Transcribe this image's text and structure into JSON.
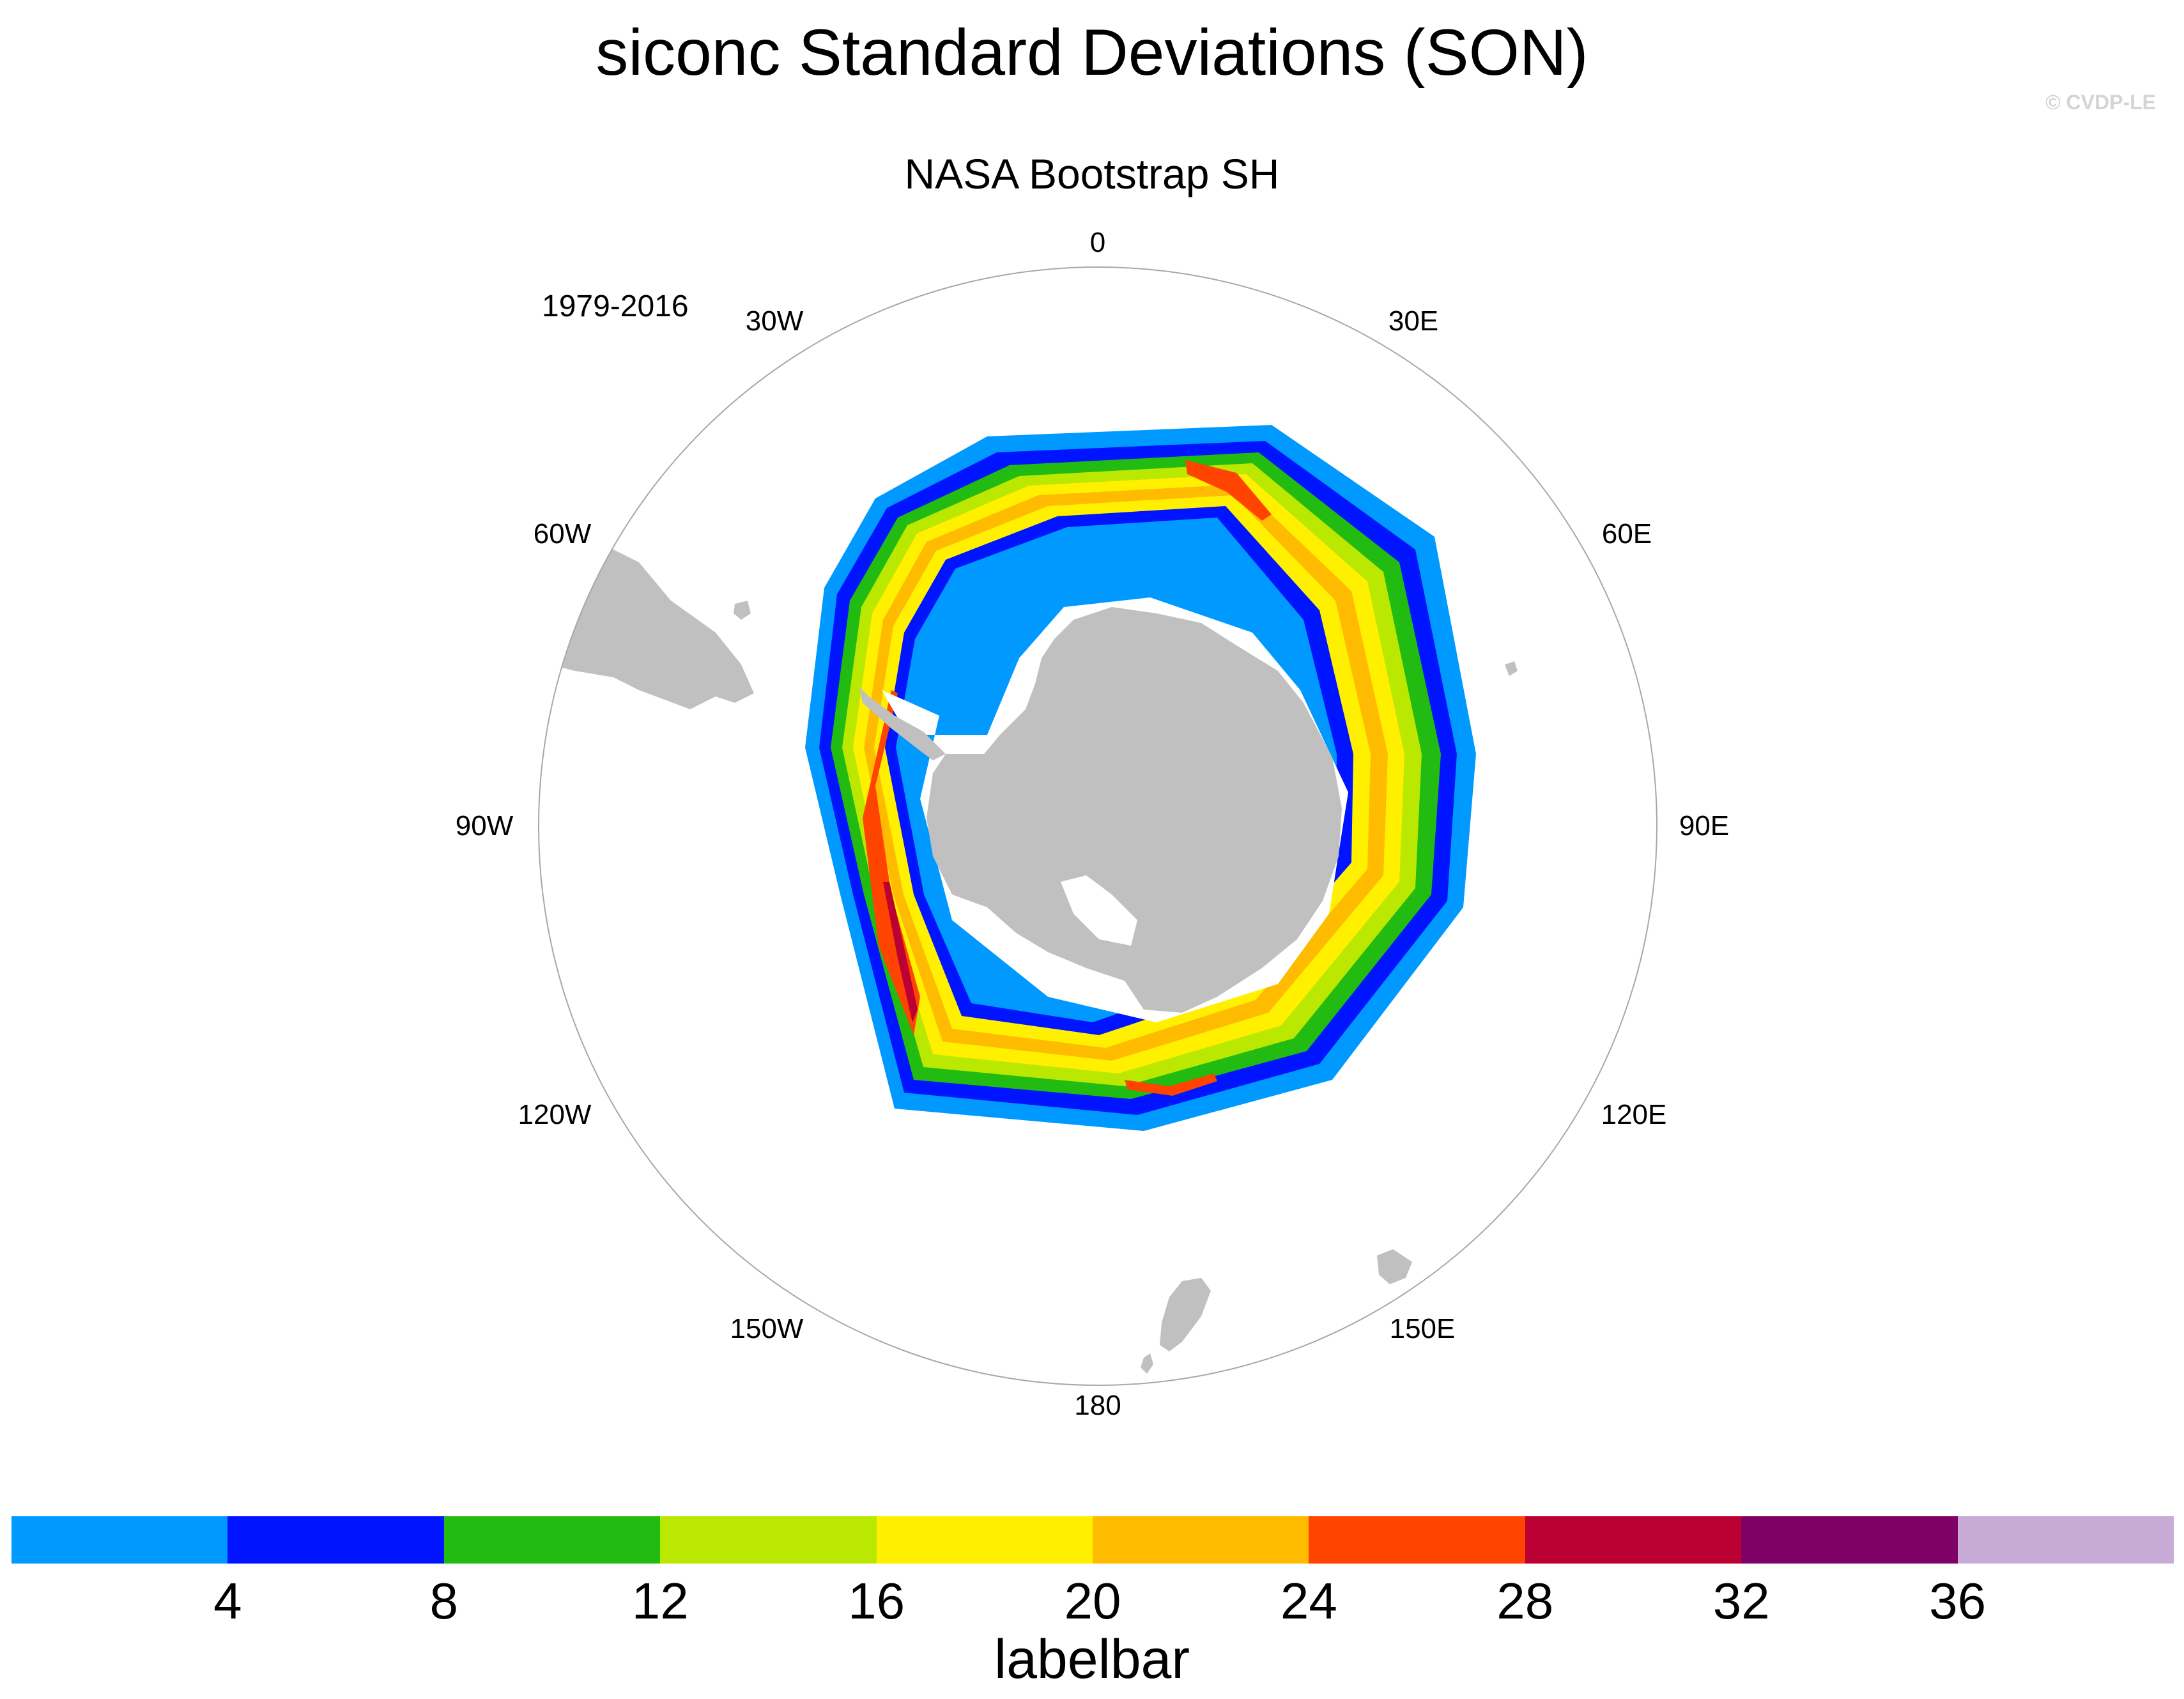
{
  "title": "siconc Standard Deviations (SON)",
  "credit": "© CVDP-LE",
  "subtitle": "NASA Bootstrap SH",
  "period": "1979-2016",
  "longitude_labels": [
    "0",
    "30E",
    "60E",
    "90E",
    "120E",
    "150E",
    "180",
    "150W",
    "120W",
    "90W",
    "60W",
    "30W"
  ],
  "colors": {
    "land": "#c0c0c0",
    "map_outline": "#a8a8a8",
    "levels": [
      "#0099ff",
      "#0014ff",
      "#22bb11",
      "#bbe800",
      "#fff000",
      "#ffbb00",
      "#ff4400",
      "#bb0033",
      "#7f0066",
      "#c8aad6"
    ]
  },
  "labelbar": {
    "title": "labelbar",
    "tick_labels": [
      "4",
      "8",
      "12",
      "16",
      "20",
      "24",
      "28",
      "32",
      "36"
    ]
  },
  "chart_data": {
    "type": "heatmap",
    "projection": "south polar stereographic",
    "variable": "siconc",
    "statistic": "standard deviation",
    "season": "SON",
    "contour_levels": [
      4,
      8,
      12,
      16,
      20,
      24,
      28,
      32,
      36
    ],
    "features": [
      "Antarctica",
      "sea-ice standard deviation ring",
      "South America tip",
      "New Zealand"
    ]
  }
}
